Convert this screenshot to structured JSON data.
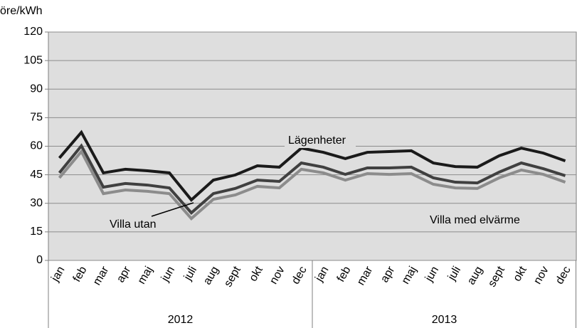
{
  "chart_data": {
    "type": "line",
    "y_label": "öre/kWh",
    "categories": [
      "jan",
      "feb",
      "mar",
      "apr",
      "maj",
      "jun",
      "juli",
      "aug",
      "sept",
      "okt",
      "nov",
      "dec",
      "jan",
      "feb",
      "mar",
      "apr",
      "maj",
      "jun",
      "juli",
      "aug",
      "sept",
      "okt",
      "nov",
      "dec"
    ],
    "groups": [
      "2012",
      "2013"
    ],
    "ylim": [
      0,
      120
    ],
    "yticks": [
      0,
      15,
      30,
      45,
      60,
      75,
      90,
      105,
      120
    ],
    "grid": true,
    "series": [
      {
        "name": "Lägenheter",
        "color": "#1a1a1a",
        "values": [
          53.8,
          67.3,
          46,
          47.9,
          47.1,
          46,
          31.8,
          42.2,
          44.9,
          49.7,
          49,
          59,
          56.8,
          53.5,
          56.8,
          57.2,
          57.6,
          51.2,
          49.3,
          49,
          55,
          59,
          56.4,
          52.3
        ]
      },
      {
        "name": "Villa utan",
        "color": "#404040",
        "values": [
          46,
          60.2,
          38.5,
          40.4,
          39.6,
          38.1,
          25,
          35.1,
          37.8,
          42.2,
          41.5,
          51.2,
          49,
          45.2,
          48.6,
          48.6,
          49,
          43.4,
          41.1,
          40.7,
          46.4,
          51.2,
          48.2,
          44.5
        ]
      },
      {
        "name": "Villa med elvärme",
        "color": "#8c8c8c",
        "values": [
          43.4,
          57.2,
          35.1,
          37,
          36.3,
          35.1,
          22,
          32.1,
          34.4,
          38.9,
          38.1,
          47.9,
          46,
          42.2,
          45.6,
          45.2,
          45.6,
          40,
          38.1,
          37.8,
          43.4,
          47.5,
          45.2,
          41.1
        ]
      }
    ]
  }
}
